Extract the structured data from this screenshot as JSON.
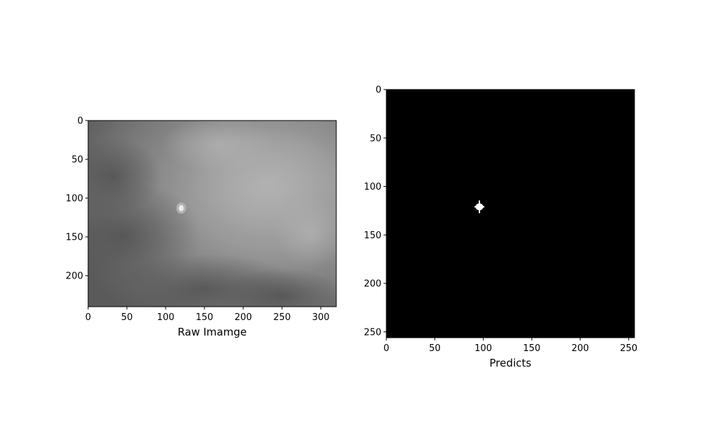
{
  "chart_data": [
    {
      "type": "image",
      "name": "raw-image",
      "xlabel": "Raw Imamge",
      "ylabel": "",
      "title": "",
      "xlim": [
        0,
        320
      ],
      "ylim": [
        240,
        0
      ],
      "xticks": [
        0,
        50,
        100,
        150,
        200,
        250,
        300
      ],
      "yticks": [
        0,
        50,
        100,
        150,
        200
      ],
      "colormap": "grayscale",
      "content": "cloudy gray sky with a small bright target",
      "target": {
        "x": 120,
        "y": 113
      },
      "grid": false
    },
    {
      "type": "image",
      "name": "predicts",
      "xlabel": "Predicts",
      "ylabel": "",
      "title": "",
      "xlim": [
        0,
        256
      ],
      "ylim": [
        256,
        0
      ],
      "xticks": [
        0,
        50,
        100,
        150,
        200,
        250
      ],
      "yticks": [
        0,
        50,
        100,
        150,
        200,
        250
      ],
      "colormap": "binary",
      "background_color": "#000000",
      "target_color": "#ffffff",
      "target": {
        "x": 96,
        "y": 121
      },
      "grid": false
    }
  ]
}
